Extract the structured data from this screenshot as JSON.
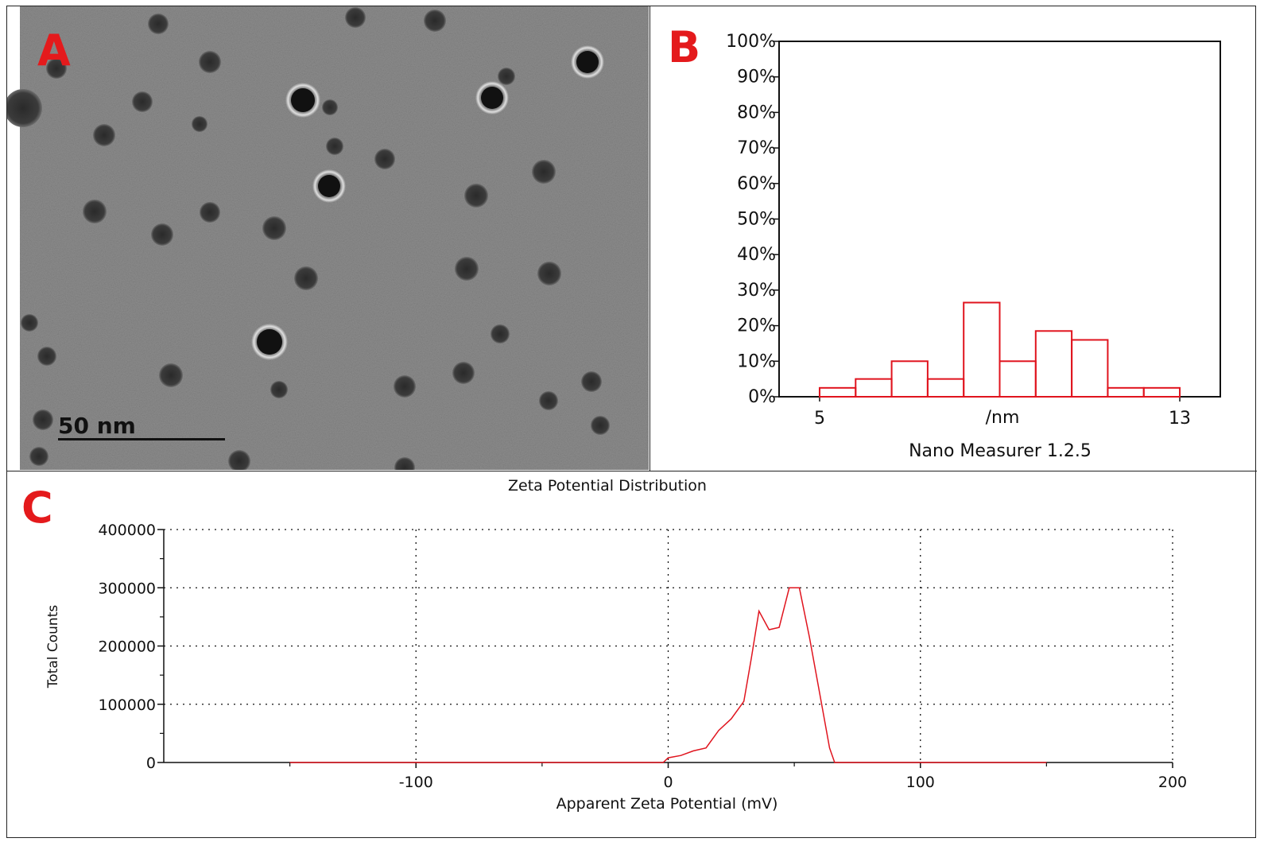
{
  "panels": {
    "a": {
      "letter": "A",
      "scale_bar_label": "50 nm"
    },
    "b": {
      "letter": "B"
    },
    "c": {
      "letter": "C"
    }
  },
  "colors": {
    "letter": "#e41a1c",
    "series": "#e0141e",
    "axis": "#111111",
    "micrograph_bg": "#8a8a8a",
    "particle": "#3a3a3a"
  },
  "chart_data": [
    {
      "type": "bar",
      "panel": "B",
      "title": "",
      "xlabel": "/nm",
      "caption": "Nano Measurer 1.2.5",
      "x_tick_labels": [
        "5",
        "13"
      ],
      "x_tick_values": [
        5,
        13
      ],
      "xlim": [
        4.1,
        13.9
      ],
      "bin_edges": [
        5,
        5.8,
        6.6,
        7.4,
        8.2,
        9.0,
        9.8,
        10.6,
        11.4,
        12.2,
        13.0
      ],
      "values": [
        2.5,
        5,
        10,
        5,
        26.5,
        10,
        18.5,
        16,
        2.5,
        2.5
      ],
      "y_tick_labels": [
        "0%",
        "10%",
        "20%",
        "30%",
        "40%",
        "50%",
        "60%",
        "70%",
        "80%",
        "90%",
        "100%"
      ],
      "ylim": [
        0,
        100
      ],
      "grid": false
    },
    {
      "type": "line",
      "panel": "C",
      "title": "Zeta Potential Distribution",
      "xlabel": "Apparent Zeta Potential (mV)",
      "ylabel": "Total Counts",
      "xlim": [
        -200,
        200
      ],
      "ylim": [
        0,
        400000
      ],
      "x_ticks": [
        -100,
        0,
        100,
        200
      ],
      "x_tick_labels": [
        "-100",
        "0",
        "100",
        "200"
      ],
      "y_ticks": [
        0,
        100000,
        200000,
        300000,
        400000
      ],
      "y_tick_labels": [
        "0",
        "100000",
        "200000",
        "300000",
        "400000"
      ],
      "grid": true,
      "x": [
        -150,
        -100,
        -50,
        -2,
        0,
        5,
        10,
        15,
        20,
        25,
        30,
        33,
        36,
        40,
        44,
        48,
        52,
        56,
        60,
        64,
        66,
        70,
        100,
        150
      ],
      "y": [
        0,
        0,
        0,
        0,
        8000,
        12000,
        20000,
        25000,
        55000,
        75000,
        105000,
        180000,
        260000,
        228000,
        232000,
        300000,
        300000,
        215000,
        120000,
        25000,
        0,
        0,
        0,
        0
      ]
    }
  ]
}
